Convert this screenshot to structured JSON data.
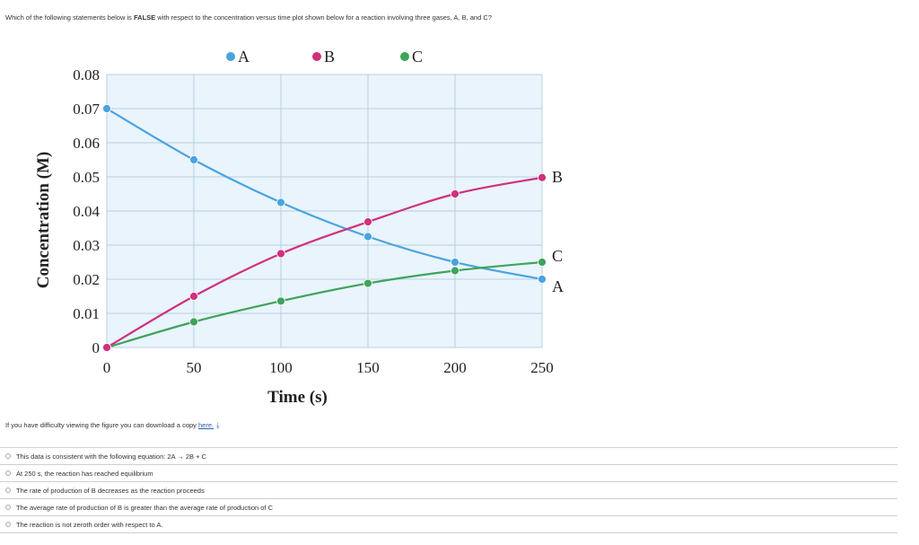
{
  "question": {
    "prefix": "Which of the following statements below is ",
    "emphasis": "FALSE",
    "suffix": " with respect to the concentration versus time plot shown below for a reaction involving three gases, A, B, and C?"
  },
  "download": {
    "text": "If you have difficulty viewing the figure you can download a copy ",
    "link": "here.",
    "icon": "download-icon"
  },
  "answers": [
    "This data is consistent with the following equation: 2A → 2B + C",
    "At 250 s, the reaction has reached equilibrium",
    "The rate of production of B decreases as the reaction proceeds",
    "The average rate of production of B is greater than the average rate of production of C",
    "The reaction is not zeroth order with respect to A."
  ],
  "chart_data": {
    "type": "line",
    "title": "",
    "xlabel": "Time (s)",
    "ylabel": "Concentration (M)",
    "xlim": [
      0,
      250
    ],
    "ylim": [
      0,
      0.08
    ],
    "x_ticks": [
      0,
      50,
      100,
      150,
      200,
      250
    ],
    "x_tick_labels": [
      "0",
      "50",
      "100",
      "150",
      "200",
      "250"
    ],
    "y_ticks": [
      0,
      0.01,
      0.02,
      0.03,
      0.04,
      0.05,
      0.06,
      0.07,
      0.08
    ],
    "y_tick_labels": [
      "0",
      "0.01",
      "0.02",
      "0.03",
      "0.04",
      "0.05",
      "0.06",
      "0.07",
      "0.08"
    ],
    "grid": true,
    "legend_position": "top",
    "series": [
      {
        "name": "A",
        "color": "#4aa3df",
        "x": [
          0,
          50,
          100,
          150,
          200,
          250
        ],
        "values": [
          0.07,
          0.055,
          0.0425,
          0.0325,
          0.025,
          0.02
        ],
        "end_label": "A"
      },
      {
        "name": "B",
        "color": "#d0307f",
        "x": [
          0,
          50,
          100,
          150,
          200,
          250
        ],
        "values": [
          0,
          0.015,
          0.0275,
          0.0368,
          0.045,
          0.0498
        ],
        "end_label": "B"
      },
      {
        "name": "C",
        "color": "#3fa35c",
        "x": [
          0,
          50,
          100,
          150,
          200,
          250
        ],
        "values": [
          0,
          0.0075,
          0.0136,
          0.0188,
          0.0225,
          0.025
        ],
        "end_label": "C"
      }
    ]
  }
}
